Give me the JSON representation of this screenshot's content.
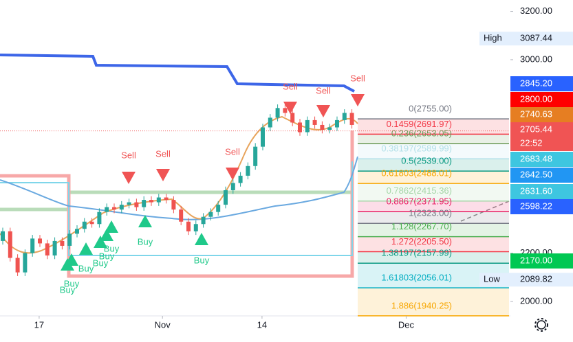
{
  "chart_data": {
    "type": "candlestick",
    "categories": [
      null,
      null,
      null,
      null,
      null,
      null,
      null,
      null,
      null,
      null,
      null,
      null,
      null,
      null,
      null,
      null,
      null,
      null,
      null,
      null,
      null,
      null,
      null,
      null,
      null,
      null,
      null,
      null,
      null,
      null,
      null,
      null,
      null,
      null,
      null,
      null,
      null,
      null,
      null,
      null,
      null,
      null,
      null,
      null,
      null,
      null,
      null,
      null
    ],
    "open": [
      2250,
      2290,
      2180,
      2120,
      2200,
      2260,
      2240,
      2190,
      2250,
      2230,
      2280,
      2300,
      2330,
      2320,
      2370,
      2390,
      2380,
      2400,
      2410,
      2390,
      2420,
      2410,
      2430,
      2420,
      2380,
      2330,
      2290,
      2320,
      2350,
      2370,
      2400,
      2460,
      2490,
      2520,
      2560,
      2640,
      2720,
      2760,
      2800,
      2780,
      2740,
      2700,
      2750,
      2730,
      2710,
      2720,
      2750,
      2780
    ],
    "high": [
      2305,
      2305,
      2195,
      2215,
      2275,
      2275,
      2255,
      2265,
      2265,
      2295,
      2315,
      2345,
      2345,
      2385,
      2405,
      2405,
      2415,
      2425,
      2425,
      2435,
      2435,
      2445,
      2445,
      2435,
      2395,
      2345,
      2335,
      2365,
      2385,
      2415,
      2475,
      2505,
      2535,
      2575,
      2655,
      2735,
      2775,
      2815,
      2815,
      2795,
      2755,
      2765,
      2765,
      2745,
      2735,
      2765,
      2795,
      2795
    ],
    "low": [
      2235,
      2165,
      2105,
      2105,
      2185,
      2225,
      2175,
      2175,
      2215,
      2215,
      2265,
      2285,
      2305,
      2305,
      2355,
      2365,
      2365,
      2385,
      2375,
      2375,
      2395,
      2395,
      2405,
      2365,
      2315,
      2275,
      2275,
      2305,
      2335,
      2355,
      2385,
      2445,
      2475,
      2505,
      2545,
      2625,
      2705,
      2745,
      2765,
      2725,
      2685,
      2685,
      2715,
      2695,
      2695,
      2705,
      2735,
      2715
    ],
    "close": [
      2290,
      2180,
      2120,
      2200,
      2260,
      2240,
      2190,
      2250,
      2230,
      2280,
      2300,
      2330,
      2320,
      2370,
      2390,
      2380,
      2400,
      2410,
      2390,
      2420,
      2410,
      2430,
      2420,
      2380,
      2330,
      2290,
      2320,
      2350,
      2370,
      2400,
      2460,
      2490,
      2520,
      2560,
      2640,
      2720,
      2760,
      2800,
      2780,
      2740,
      2700,
      2750,
      2730,
      2710,
      2720,
      2750,
      2780,
      2730
    ],
    "up_color": "#26a69a",
    "down_color": "#ef5350",
    "xlim": [
      -0.37,
      68.15
    ],
    "xticks": [
      {
        "value": 4.9,
        "label": "17"
      },
      {
        "value": 21.5,
        "label": "Nov"
      },
      {
        "value": 34.9,
        "label": "14"
      },
      {
        "value": 54.3,
        "label": "Dec"
      }
    ],
    "ylim": [
      1940,
      3247
    ],
    "yticks": [
      {
        "value": 3200,
        "label": "3200.00"
      },
      {
        "value": 3000,
        "label": "3000.00"
      },
      {
        "value": 2200,
        "label": "2200.00"
      },
      {
        "value": 2000,
        "label": "2000.00"
      }
    ],
    "fib_levels": [
      {
        "value": 2755,
        "label": "0(2755.00)",
        "color": "#787b86"
      },
      {
        "value": 2691.97,
        "label": "0.1459(2691.97)",
        "color": "#f23645"
      },
      {
        "value": 2653.05,
        "label": "0.236(2653.05)",
        "color": "#6a9955"
      },
      {
        "value": 2589.99,
        "label": "0.38197(2589.99)",
        "color": "#b2e0e8"
      },
      {
        "value": 2539,
        "label": "0.5(2539.00)",
        "color": "#089981"
      },
      {
        "value": 2488.01,
        "label": "0.61803(2488.01)",
        "color": "#f7a600"
      },
      {
        "value": 2415.36,
        "label": "0.7862(2415.36)",
        "color": "#a5d6a7"
      },
      {
        "value": 2371.95,
        "label": "0.8867(2371.95)",
        "color": "#e91e63"
      },
      {
        "value": 2323,
        "label": "1(2323.00)",
        "color": "#787b86"
      },
      {
        "value": 2267.7,
        "label": "1.128(2267.70)",
        "color": "#4caf50"
      },
      {
        "value": 2205.5,
        "label": "1.272(2205.50)",
        "color": "#f23645"
      },
      {
        "value": 2157.99,
        "label": "1.38197(2157.99)",
        "color": "#089981"
      },
      {
        "value": 2056.01,
        "label": "1.61803(2056.01)",
        "color": "#00acc1"
      },
      {
        "value": 1940.25,
        "label": "1.886(1940.25)",
        "color": "#f7a600"
      }
    ],
    "high_tag": {
      "label": "High",
      "value": 3087.44,
      "value_label": "3087.44"
    },
    "low_tag": {
      "label": "Low",
      "value": 2089.82,
      "value_label": "2089.82"
    },
    "price_tags": [
      {
        "value": 2845.2,
        "label": "2845.20",
        "color": "#2962ff"
      },
      {
        "value": 2800,
        "label": "2800.00",
        "color": "#ff0000"
      },
      {
        "value": 2740.63,
        "label": "2740.63",
        "color": "#e67e22"
      },
      {
        "value": 2705.44,
        "label": "2705.44",
        "color": "#f05454",
        "countdown": "22:52"
      },
      {
        "value": 2683.48,
        "label": "2683.48",
        "color": "#3ec6e0"
      },
      {
        "value": 2642.5,
        "label": "2642.50",
        "color": "#2196f3"
      },
      {
        "value": 2631.6,
        "label": "2631.60",
        "color": "#3ec6e0"
      },
      {
        "value": 2598.22,
        "label": "2598.22",
        "color": "#2962ff"
      },
      {
        "value": 2170,
        "label": "2170.00",
        "color": "#00c853"
      }
    ],
    "signals": [
      {
        "label": "Sell"
      },
      {
        "label": "Sell"
      },
      {
        "label": "Sell"
      },
      {
        "label": "Sell"
      },
      {
        "label": "Sell"
      },
      {
        "label": "Sell"
      },
      {
        "label": "Buy"
      },
      {
        "label": "Buy"
      },
      {
        "label": "Buy"
      },
      {
        "label": "Buy"
      },
      {
        "label": "Buy"
      },
      {
        "label": "Buy"
      },
      {
        "label": "Buy"
      },
      {
        "label": "Buy"
      }
    ]
  }
}
